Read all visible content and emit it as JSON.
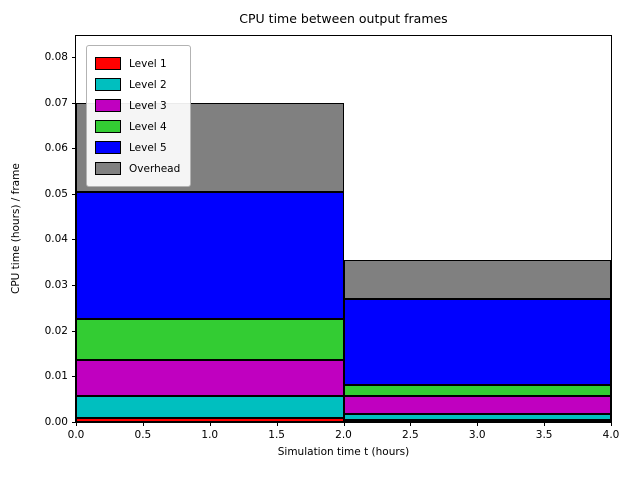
{
  "chart_data": {
    "type": "bar",
    "title": "CPU time between output frames",
    "xlabel": "Simulation time t (hours)",
    "ylabel": "CPU time (hours) / frame",
    "xlim": [
      0,
      4
    ],
    "ylim": [
      0,
      0.0846
    ],
    "xticks": {
      "values": [
        0.0,
        0.5,
        1.0,
        1.5,
        2.0,
        2.5,
        3.0,
        3.5,
        4.0
      ],
      "labels": [
        "0.0",
        "0.5",
        "1.0",
        "1.5",
        "2.0",
        "2.5",
        "3.0",
        "3.5",
        "4.0"
      ]
    },
    "yticks": {
      "values": [
        0.0,
        0.01,
        0.02,
        0.03,
        0.04,
        0.05,
        0.06,
        0.07,
        0.08
      ],
      "labels": [
        "0.00",
        "0.01",
        "0.02",
        "0.03",
        "0.04",
        "0.05",
        "0.06",
        "0.07",
        "0.08"
      ]
    },
    "bars": [
      {
        "x_start": 0,
        "x_end": 2,
        "total": 0.07
      },
      {
        "x_start": 2,
        "x_end": 4,
        "total": 0.0355
      }
    ],
    "series": [
      {
        "name": "Level 1",
        "color": "#ff0000",
        "values": [
          0.0008,
          0.0004
        ]
      },
      {
        "name": "Level 2",
        "color": "#00bfbf",
        "values": [
          0.005,
          0.0014
        ]
      },
      {
        "name": "Level 3",
        "color": "#c000c0",
        "values": [
          0.0077,
          0.004
        ]
      },
      {
        "name": "Level 4",
        "color": "#33cc33",
        "values": [
          0.009,
          0.0022
        ]
      },
      {
        "name": "Level 5",
        "color": "#0000ff",
        "values": [
          0.028,
          0.019
        ]
      },
      {
        "name": "Overhead",
        "color": "#808080",
        "values": [
          0.0195,
          0.0085
        ]
      }
    ],
    "edge_color": "#000000",
    "legend_position": "upper left",
    "grid": false
  }
}
